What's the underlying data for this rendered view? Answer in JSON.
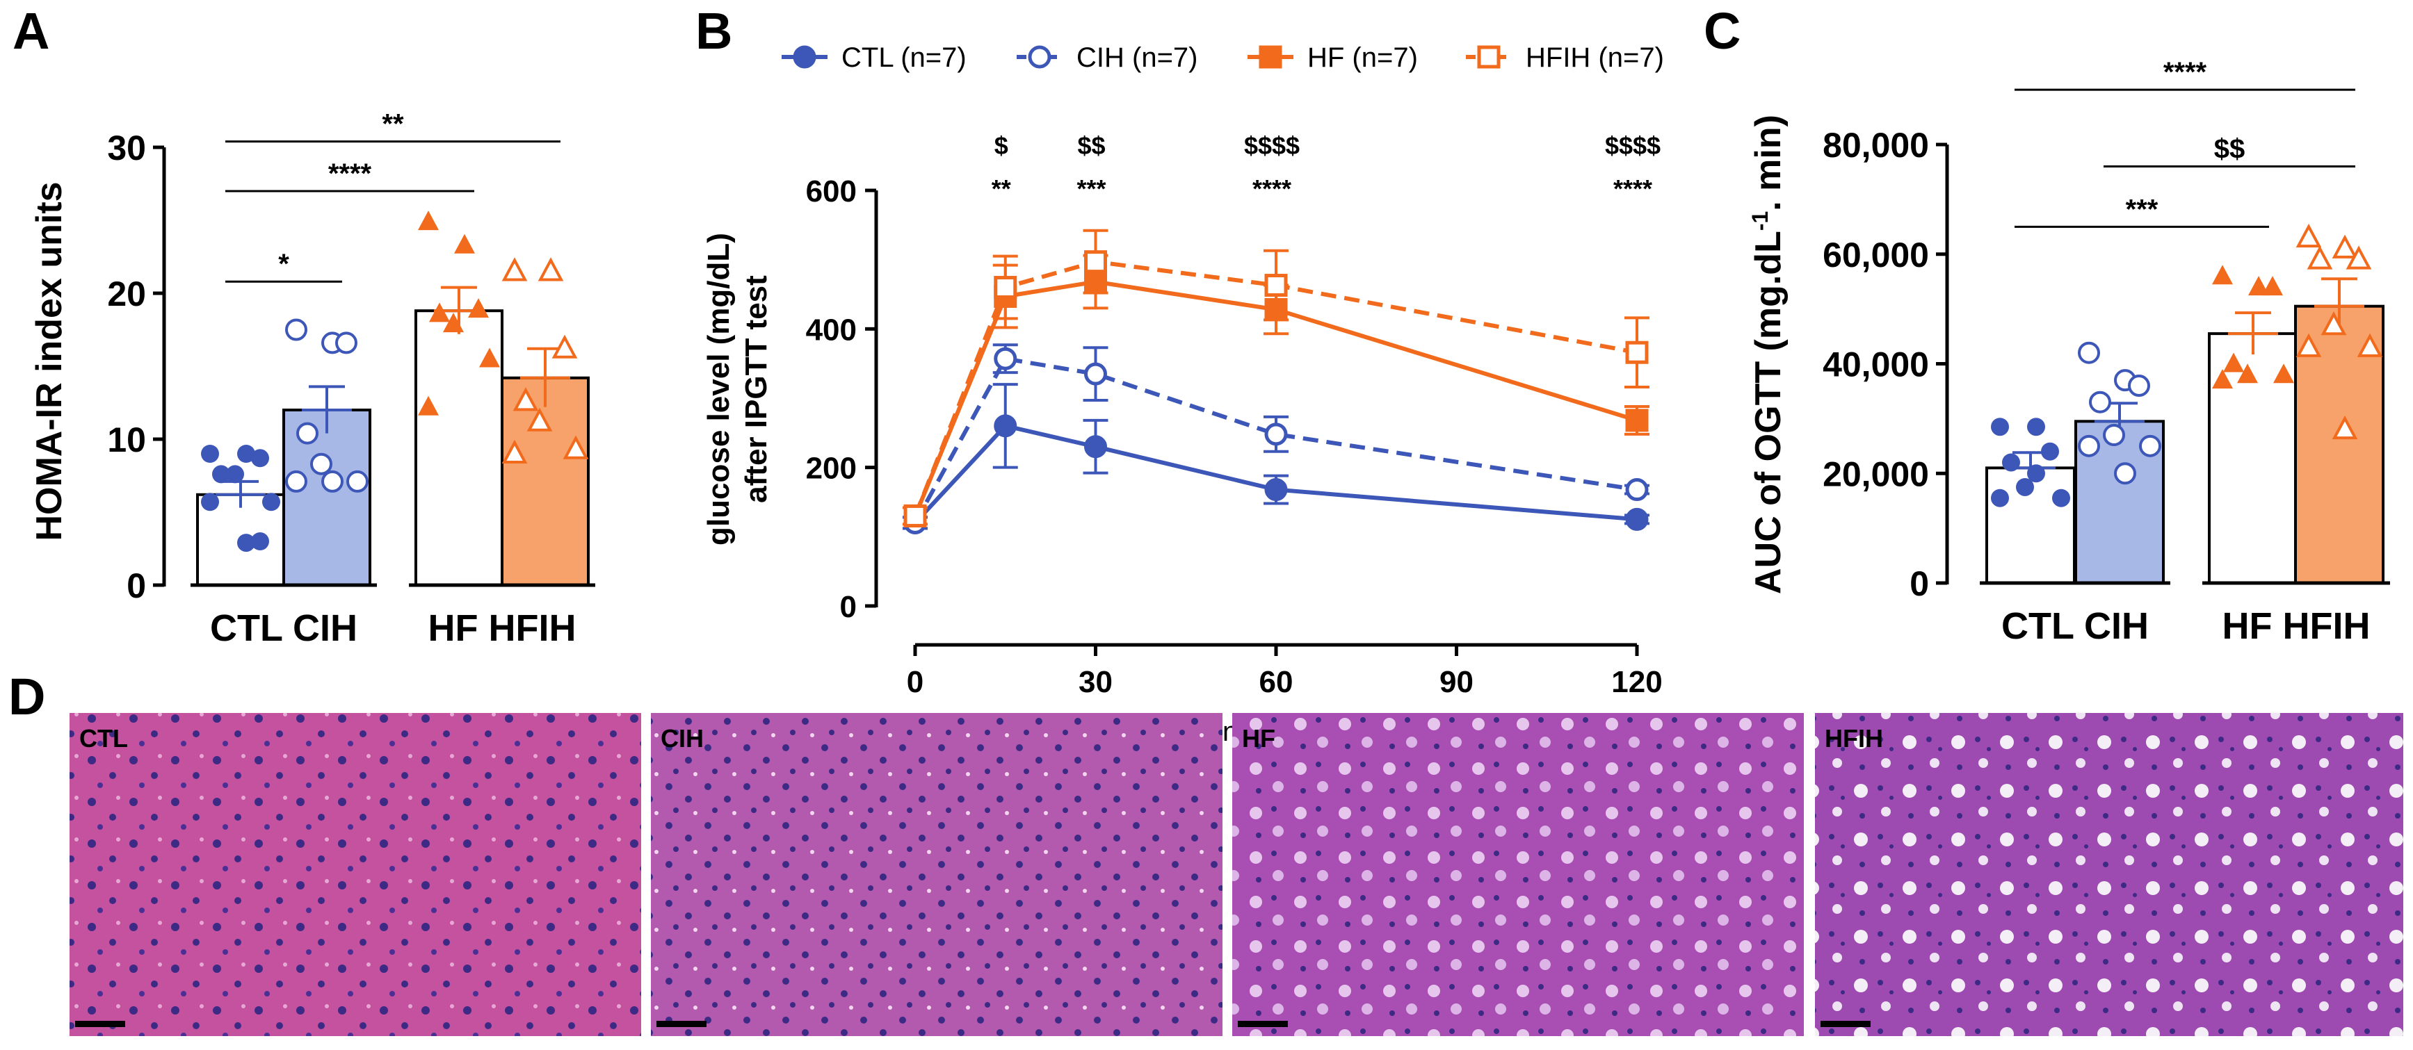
{
  "panels": {
    "A": "A",
    "B": "B",
    "C": "C",
    "D": "D"
  },
  "colors": {
    "ctl": "#3d57b8",
    "cih_fill": "#a8b8e6",
    "hf": "#f26a1b",
    "hfih_fill": "#f8a26b",
    "black": "#000000",
    "tissue_pink": "#c4529e",
    "tissue_purple": "#9b4bb3",
    "nucleus": "#3c2a85"
  },
  "chart_data": [
    {
      "id": "A",
      "type": "bar",
      "ylabel": "HOMA-IR index units",
      "ylim": [
        0,
        30
      ],
      "yticks": [
        "0",
        "10",
        "20",
        "30"
      ],
      "categories": [
        "CTL",
        "CIH",
        "HF",
        "HFIH"
      ],
      "group_labels": [
        "CTL CIH",
        "HF HFIH"
      ],
      "means": [
        6.2,
        12.0,
        18.8,
        14.2
      ],
      "sem": [
        0.9,
        1.6,
        1.6,
        2.0
      ],
      "points": [
        [
          9.0,
          9.0,
          8.7,
          7.6,
          7.6,
          5.7,
          5.7,
          2.9,
          3.0
        ],
        [
          17.5,
          16.6,
          16.6,
          10.4,
          8.3,
          7.1,
          7.1,
          7.1
        ],
        [
          24.9,
          23.3,
          18.9,
          18.6,
          17.9,
          15.5,
          12.2
        ],
        [
          21.5,
          21.5,
          16.2,
          12.6,
          11.2,
          9.3,
          9.0
        ]
      ],
      "significance": [
        {
          "label": "*",
          "from": 0,
          "to": 1,
          "y": 20.8
        },
        {
          "label": "****",
          "from": 0,
          "to": 2,
          "y": 27.0
        },
        {
          "label": "**",
          "from": 0,
          "to": 3,
          "y": 30.4
        }
      ]
    },
    {
      "id": "B",
      "type": "line",
      "ylabel": [
        "glucose level (mg/dL)",
        "after IPGTT test"
      ],
      "x": [
        0,
        15,
        30,
        60,
        120
      ],
      "xticks": [
        "0",
        "30",
        "60",
        "90",
        "120"
      ],
      "xtick_values": [
        0,
        30,
        60,
        90,
        120
      ],
      "xlim": [
        0,
        120
      ],
      "ylim": [
        0,
        600
      ],
      "yticks": [
        "0",
        "200",
        "400",
        "600"
      ],
      "xaxis_fragment": "n",
      "series": [
        {
          "name": "CTL (n=7)",
          "values": [
            120,
            260,
            230,
            168,
            125
          ],
          "errors": [
            8,
            60,
            38,
            20,
            6
          ],
          "marker": "circle",
          "filled": true,
          "dashed": false
        },
        {
          "name": "CIH (n=7)",
          "values": [
            120,
            357,
            335,
            248,
            168
          ],
          "errors": [
            8,
            20,
            38,
            25,
            6
          ],
          "marker": "circle",
          "filled": false,
          "dashed": true
        },
        {
          "name": "HF (n=7)",
          "values": [
            130,
            447,
            468,
            428,
            268
          ],
          "errors": [
            12,
            45,
            38,
            35,
            20
          ],
          "marker": "square",
          "filled": true,
          "dashed": false
        },
        {
          "name": "HFIH (n=7)",
          "values": [
            130,
            460,
            497,
            463,
            366
          ],
          "errors": [
            12,
            45,
            45,
            50,
            50
          ],
          "marker": "square",
          "filled": false,
          "dashed": true
        }
      ],
      "annotations": [
        {
          "x": 15,
          "dollar": "$",
          "stars": "**"
        },
        {
          "x": 30,
          "dollar": "$$",
          "stars": "***"
        },
        {
          "x": 60,
          "dollar": "$$$$",
          "stars": "****"
        },
        {
          "x": 120,
          "dollar": "$$$$",
          "stars": "****"
        }
      ]
    },
    {
      "id": "C",
      "type": "bar",
      "ylabel": "AUC of OGTT (mg.dL-1. min)",
      "ylabel_parts": [
        "AUC of OGTT (mg.dL",
        "-1",
        ". min)"
      ],
      "ylim": [
        0,
        80000
      ],
      "yticks": [
        "0",
        "20,000",
        "40,000",
        "60,000",
        "80,000"
      ],
      "categories": [
        "CTL",
        "CIH",
        "HF",
        "HFIH"
      ],
      "group_labels": [
        "CTL CIH",
        "HF HFIH"
      ],
      "means": [
        21000,
        29500,
        45500,
        50500
      ],
      "sem": [
        2800,
        3300,
        3800,
        5000
      ],
      "points": [
        [
          28500,
          28500,
          24000,
          22000,
          17500,
          15500,
          15500,
          20000
        ],
        [
          42000,
          37000,
          36000,
          33000,
          27000,
          25000,
          25000,
          20000
        ],
        [
          56000,
          54000,
          54000,
          40000,
          38000,
          38000,
          37000
        ],
        [
          63000,
          61000,
          59000,
          59000,
          47000,
          43000,
          43000,
          28000
        ]
      ],
      "significance": [
        {
          "label": "***",
          "from": 0,
          "to": 2,
          "y": 65000
        },
        {
          "label": "$$",
          "from": 1,
          "to": 3,
          "y": 76000
        },
        {
          "label": "****",
          "from": 0,
          "to": 3,
          "y": 90000
        }
      ]
    }
  ],
  "micrographs": [
    {
      "label": "CTL"
    },
    {
      "label": "CIH"
    },
    {
      "label": "HF"
    },
    {
      "label": "HFIH"
    }
  ]
}
